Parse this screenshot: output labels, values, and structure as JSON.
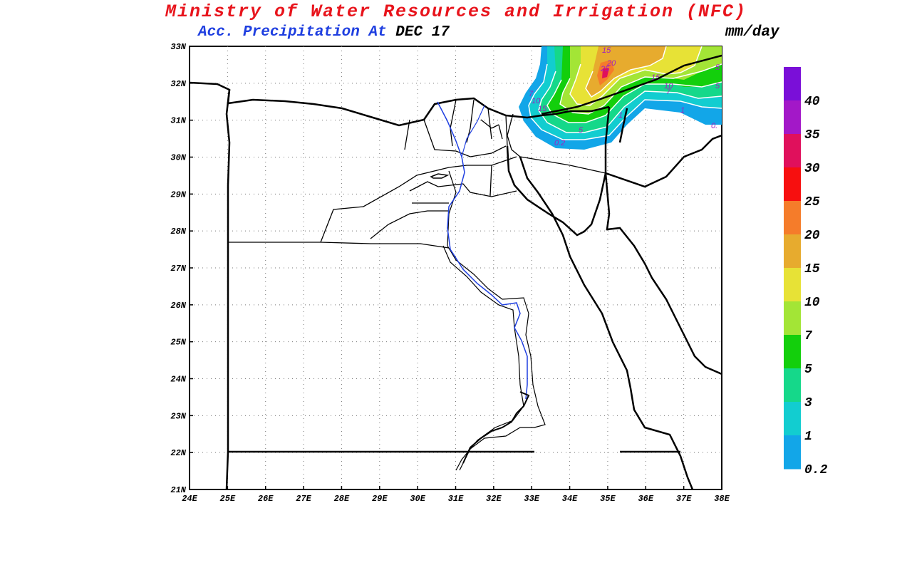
{
  "header": {
    "title": "Ministry of Water Resources and Irrigation (NFC)",
    "subtitle_part1": "Acc. Precipitation  At",
    "subtitle_part2": "DEC 17",
    "units": "mm/day"
  },
  "map": {
    "x_ticks": [
      "24E",
      "25E",
      "26E",
      "27E",
      "28E",
      "29E",
      "30E",
      "31E",
      "32E",
      "33E",
      "34E",
      "35E",
      "36E",
      "37E",
      "38E"
    ],
    "y_ticks": [
      "33N",
      "32N",
      "31N",
      "30N",
      "29N",
      "28N",
      "27N",
      "26N",
      "25N",
      "24N",
      "23N",
      "22N",
      "21N"
    ],
    "lon_range": [
      24,
      38
    ],
    "lat_range": [
      21,
      33
    ],
    "contour_labels": [
      "15",
      "20",
      "25",
      "15",
      "10",
      "7",
      "7",
      "10",
      "15",
      "5",
      "0.2",
      "1",
      "5",
      "5",
      "0.",
      "1"
    ]
  },
  "colorbar": {
    "labels": [
      "40",
      "35",
      "30",
      "25",
      "20",
      "15",
      "10",
      "7",
      "5",
      "3",
      "1",
      "0.2"
    ],
    "colors": [
      "#7a0fd8",
      "#a318c8",
      "#e0105c",
      "#f70f0f",
      "#f57c2a",
      "#e7ab2e",
      "#e7e236",
      "#a3e536",
      "#13cf0c",
      "#15d88a",
      "#12cdd0",
      "#12a6e8"
    ]
  }
}
